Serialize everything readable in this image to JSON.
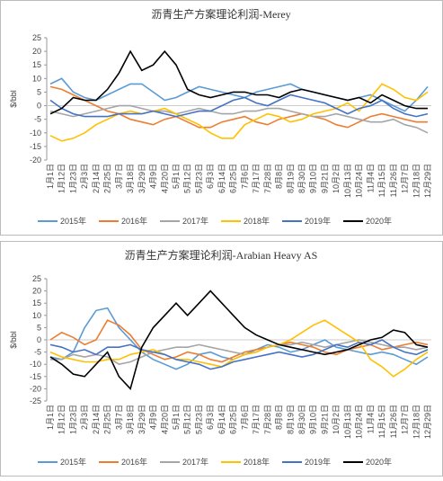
{
  "chart_data": [
    {
      "type": "line",
      "title": "沥青生产方案理论利润-Merey",
      "y_label": "$/bbl",
      "categories": [
        "1月1日",
        "1月12日",
        "1月23日",
        "2月3日",
        "2月14日",
        "2月25日",
        "3月7日",
        "3月18日",
        "3月29日",
        "4月9日",
        "4月20日",
        "5月1日",
        "5月12日",
        "5月23日",
        "6月3日",
        "6月14日",
        "6月25日",
        "7月6日",
        "7月17日",
        "7月28日",
        "8月8日",
        "8月19日",
        "8月30日",
        "9月10日",
        "9月21日",
        "10月2日",
        "10月13日",
        "10月24日",
        "11月4日",
        "11月15日",
        "11月26日",
        "12月7日",
        "12月18日",
        "12月29日"
      ],
      "ylim": [
        -20,
        25
      ],
      "yticks": [
        -20,
        -15,
        -10,
        -5,
        0,
        5,
        10,
        15,
        20,
        25
      ],
      "series": [
        {
          "name": "2015年",
          "color": "#5b9bd5",
          "values": [
            8,
            10,
            5,
            3,
            2,
            4,
            6,
            8,
            8,
            5,
            2,
            3,
            5,
            7,
            6,
            5,
            4,
            3,
            5,
            6,
            7,
            8,
            6,
            5,
            4,
            3,
            2,
            3,
            4,
            2,
            0,
            -2,
            2,
            7
          ]
        },
        {
          "name": "2016年",
          "color": "#ed7d31",
          "values": [
            7,
            6,
            4,
            2,
            0,
            -2,
            -3,
            -5,
            -6,
            -7,
            -5,
            -4,
            -6,
            -8,
            -8,
            -6,
            -5,
            -4,
            -6,
            -7,
            -5,
            -4,
            -3,
            -4,
            -5,
            -7,
            -8,
            -6,
            -4,
            -3,
            -4,
            -5,
            -6,
            -6
          ]
        },
        {
          "name": "2017年",
          "color": "#a5a5a5",
          "values": [
            -2,
            -3,
            -4,
            -3,
            -2,
            -1,
            0,
            0,
            -1,
            -2,
            -2,
            -3,
            -2,
            -1,
            -2,
            -3,
            -3,
            -2,
            -2,
            -1,
            -1,
            -2,
            -3,
            -4,
            -4,
            -3,
            -4,
            -5,
            -6,
            -6,
            -5,
            -7,
            -8,
            -10
          ]
        },
        {
          "name": "2018年",
          "color": "#ffc000",
          "values": [
            -11,
            -13,
            -12,
            -10,
            -7,
            -5,
            -3,
            -2,
            -3,
            -2,
            -1,
            -3,
            -5,
            -7,
            -10,
            -12,
            -12,
            -7,
            -5,
            -3,
            -4,
            -6,
            -5,
            -3,
            -2,
            -1,
            1,
            -2,
            3,
            8,
            6,
            3,
            2,
            5
          ]
        },
        {
          "name": "2019年",
          "color": "#4472c4",
          "values": [
            2,
            -1,
            -3,
            -4,
            -4,
            -4,
            -3,
            -3,
            -3,
            -2,
            -3,
            -4,
            -3,
            -2,
            -2,
            0,
            2,
            3,
            1,
            0,
            2,
            4,
            3,
            2,
            1,
            -1,
            -3,
            -1,
            0,
            2,
            -1,
            -3,
            -4,
            -3
          ]
        },
        {
          "name": "2020年",
          "color": "#000000",
          "values": [
            -3,
            -1,
            3,
            2,
            2,
            6,
            12,
            20,
            13,
            15,
            20,
            15,
            6,
            4,
            3,
            4,
            5,
            5,
            4,
            4,
            3,
            5,
            6,
            5,
            4,
            3,
            2,
            3,
            1,
            4,
            2,
            0,
            -1,
            -1
          ]
        }
      ]
    },
    {
      "type": "line",
      "title": "沥青生产方案理论利润-Arabian Heavy AS",
      "y_label": "$/bbl",
      "categories": [
        "1月1日",
        "1月12日",
        "1月23日",
        "2月3日",
        "2月14日",
        "2月25日",
        "3月7日",
        "3月18日",
        "3月29日",
        "4月9日",
        "4月20日",
        "5月1日",
        "5月12日",
        "5月23日",
        "6月3日",
        "6月14日",
        "6月25日",
        "7月6日",
        "7月17日",
        "7月28日",
        "8月8日",
        "8月19日",
        "8月30日",
        "9月10日",
        "9月21日",
        "10月2日",
        "10月13日",
        "10月24日",
        "11月4日",
        "11月15日",
        "11月26日",
        "12月7日",
        "12月18日",
        "12月29日"
      ],
      "ylim": [
        -25,
        25
      ],
      "yticks": [
        -25,
        -20,
        -15,
        -10,
        -5,
        0,
        5,
        10,
        15,
        20,
        25
      ],
      "series": [
        {
          "name": "2015年",
          "color": "#5b9bd5",
          "values": [
            -7,
            -8,
            -5,
            5,
            12,
            13,
            5,
            0,
            -5,
            -8,
            -10,
            -12,
            -10,
            -6,
            -5,
            -7,
            -8,
            -6,
            -4,
            -2,
            -3,
            -5,
            -4,
            -2,
            0,
            -3,
            -4,
            -5,
            -6,
            -5,
            -6,
            -8,
            -10,
            -7
          ]
        },
        {
          "name": "2016年",
          "color": "#ed7d31",
          "values": [
            0,
            3,
            1,
            -2,
            0,
            8,
            6,
            2,
            -4,
            -6,
            -8,
            -7,
            -5,
            -6,
            -8,
            -9,
            -7,
            -5,
            -4,
            -3,
            -2,
            -1,
            -2,
            -3,
            -5,
            -6,
            -4,
            -3,
            -2,
            -4,
            -3,
            -2,
            -1,
            -2
          ]
        },
        {
          "name": "2017年",
          "color": "#a5a5a5",
          "values": [
            -8,
            -8,
            -6,
            -7,
            -6,
            -7,
            -10,
            -9,
            -7,
            -5,
            -4,
            -3,
            -3,
            -2,
            -3,
            -4,
            -5,
            -6,
            -5,
            -3,
            -2,
            -2,
            -1,
            -2,
            -3,
            -2,
            -1,
            0,
            -1,
            -2,
            -3,
            -3,
            -4,
            -3
          ]
        },
        {
          "name": "2018年",
          "color": "#ffc000",
          "values": [
            -5,
            -7,
            -8,
            -9,
            -9,
            -8,
            -8,
            -6,
            -5,
            -4,
            -6,
            -8,
            -8,
            -9,
            -10,
            -11,
            -8,
            -6,
            -5,
            -3,
            -2,
            0,
            3,
            6,
            8,
            5,
            2,
            -1,
            -8,
            -11,
            -15,
            -12,
            -8,
            -5
          ]
        },
        {
          "name": "2019年",
          "color": "#4472c4",
          "values": [
            -2,
            -3,
            -5,
            -4,
            -6,
            -3,
            -3,
            -2,
            -4,
            -5,
            -6,
            -8,
            -9,
            -10,
            -12,
            -11,
            -9,
            -8,
            -7,
            -6,
            -5,
            -6,
            -7,
            -6,
            -4,
            -2,
            -3,
            -1,
            -2,
            0,
            -3,
            -5,
            -6,
            -4
          ]
        },
        {
          "name": "2020年",
          "color": "#000000",
          "values": [
            -7,
            -10,
            -14,
            -15,
            -10,
            -5,
            -15,
            -20,
            -3,
            5,
            10,
            15,
            10,
            15,
            20,
            15,
            10,
            5,
            2,
            0,
            -2,
            -3,
            -4,
            -5,
            -6,
            -5,
            -4,
            -2,
            0,
            1,
            4,
            3,
            -2,
            -3
          ]
        }
      ]
    }
  ]
}
